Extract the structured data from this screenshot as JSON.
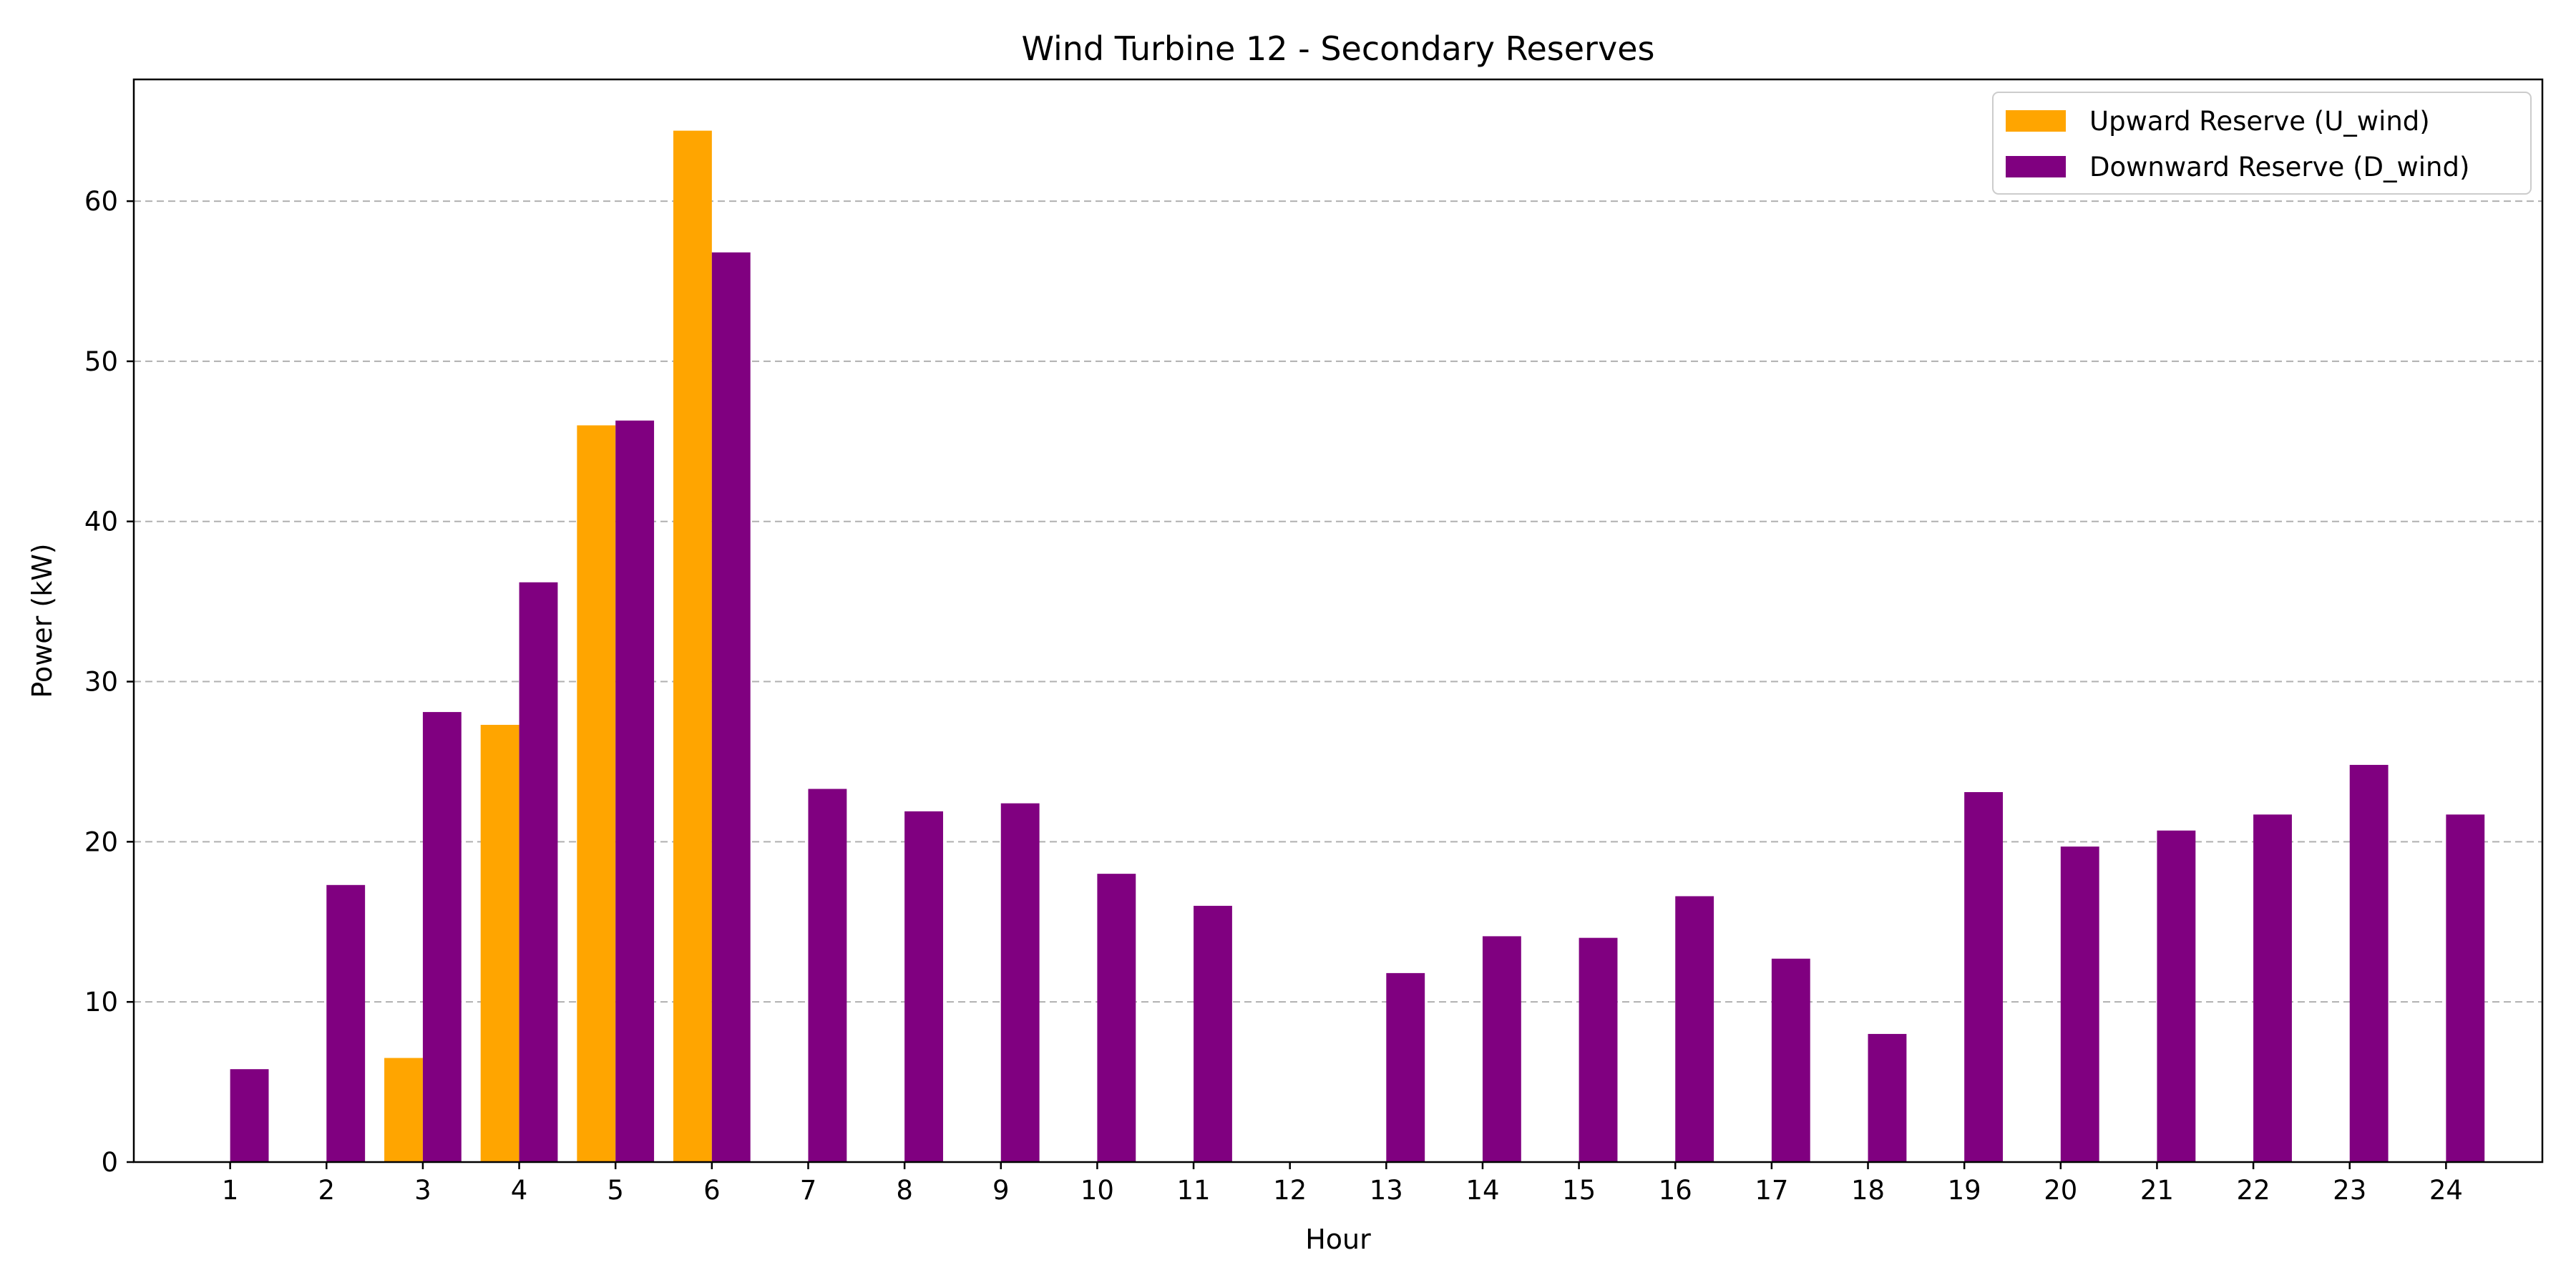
{
  "chart_data": {
    "type": "bar",
    "title": "Wind Turbine 12 - Secondary Reserves",
    "xlabel": "Hour",
    "ylabel": "Power (kW)",
    "categories": [
      "1",
      "2",
      "3",
      "4",
      "5",
      "6",
      "7",
      "8",
      "9",
      "10",
      "11",
      "12",
      "13",
      "14",
      "15",
      "16",
      "17",
      "18",
      "19",
      "20",
      "21",
      "22",
      "23",
      "24"
    ],
    "series": [
      {
        "name": "Upward Reserve (U_wind)",
        "color": "#FFA500",
        "values": [
          0,
          0,
          6.5,
          27.3,
          46.0,
          64.4,
          0,
          0,
          0,
          0,
          0,
          0,
          0,
          0,
          0,
          0,
          0,
          0,
          0,
          0,
          0,
          0,
          0,
          0
        ]
      },
      {
        "name": "Downward Reserve (D_wind)",
        "color": "#800080",
        "values": [
          5.8,
          17.3,
          28.1,
          36.2,
          46.3,
          56.8,
          23.3,
          21.9,
          22.4,
          18.0,
          16.0,
          0,
          11.8,
          14.1,
          14.0,
          16.6,
          12.7,
          8.0,
          23.1,
          19.7,
          20.7,
          21.7,
          24.8,
          21.7
        ]
      }
    ],
    "ylim": [
      0,
      67.6
    ],
    "yticks": [
      0,
      10,
      20,
      30,
      40,
      50,
      60
    ],
    "grid": "y-dashed",
    "legend_position": "top-right"
  }
}
